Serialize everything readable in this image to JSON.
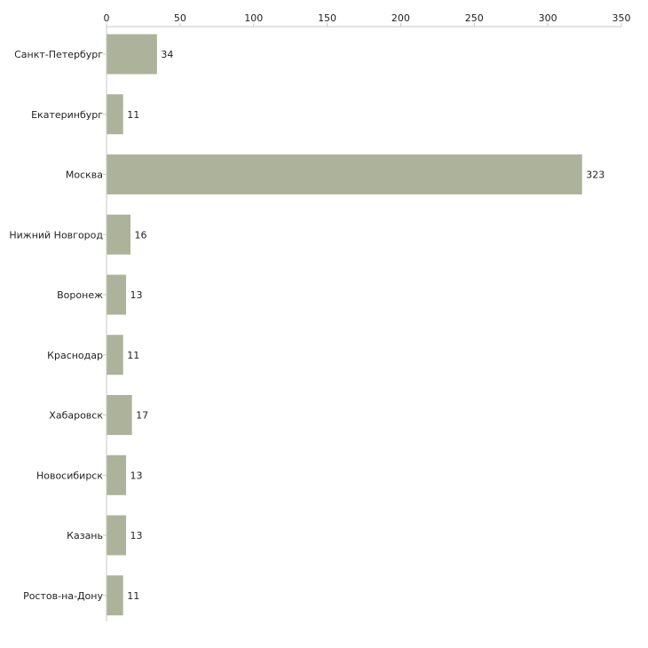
{
  "chart_data": {
    "type": "bar",
    "orientation": "horizontal",
    "title": "",
    "xlabel": "",
    "ylabel": "",
    "xlim": [
      0,
      350
    ],
    "x_ticks": [
      0,
      50,
      100,
      150,
      200,
      250,
      300,
      350
    ],
    "x_tick_labels": [
      "0",
      "50",
      "100",
      "150",
      "200",
      "250",
      "300",
      "350"
    ],
    "x_axis_position": "top",
    "grid": false,
    "legend": "none",
    "categories": [
      "Санкт-Петербург",
      "Екатеринбург",
      "Москва",
      "Нижний Новгород",
      "Воронеж",
      "Краснодар",
      "Хабаровск",
      "Новосибирск",
      "Казань",
      "Ростов-на-Дону"
    ],
    "values": [
      34,
      11,
      323,
      16,
      13,
      11,
      17,
      13,
      13,
      11
    ],
    "value_labels": [
      "34",
      "11",
      "323",
      "16",
      "13",
      "11",
      "17",
      "13",
      "13",
      "11"
    ],
    "bar_color": "#adb39a",
    "axis_color": "#c8c8c8",
    "text_color": "#222222"
  }
}
